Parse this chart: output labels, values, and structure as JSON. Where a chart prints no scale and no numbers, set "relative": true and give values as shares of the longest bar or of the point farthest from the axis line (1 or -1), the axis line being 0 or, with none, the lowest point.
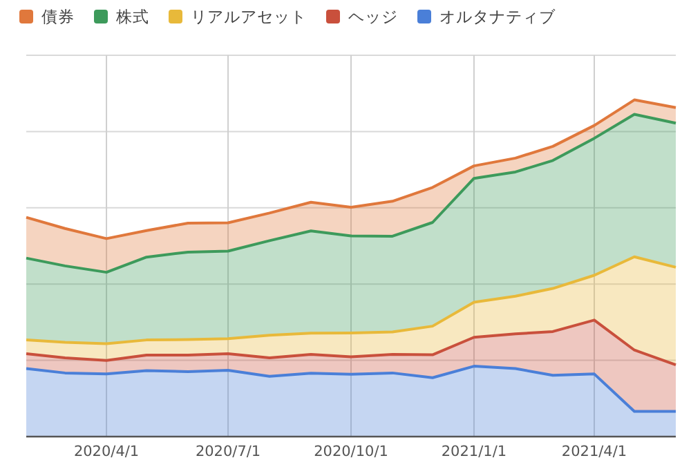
{
  "chart_data": {
    "type": "area",
    "stacked": true,
    "relative": true,
    "grid": true,
    "legend": "top left",
    "x": [
      "2020-02-01",
      "2020-03-01",
      "2020-04-01",
      "2020-05-01",
      "2020-06-01",
      "2020-07-01",
      "2020-08-01",
      "2020-09-01",
      "2020-10-01",
      "2020-11-01",
      "2020-12-01",
      "2021-01-01",
      "2021-02-01",
      "2021-03-01",
      "2021-04-01",
      "2021-05-01",
      "2021-06-01"
    ],
    "xlim": [
      "2020-02-01",
      "2021-06-01"
    ],
    "xticks": [
      {
        "value": "2020-04-01",
        "label": "2020/4/1"
      },
      {
        "value": "2020-07-01",
        "label": "2020/7/1"
      },
      {
        "value": "2020-10-01",
        "label": "2020/10/1"
      },
      {
        "value": "2021-01-01",
        "label": "2021/1/1"
      },
      {
        "value": "2021-04-01",
        "label": "2021/4/1"
      }
    ],
    "series": [
      {
        "name": "オルタナティブ",
        "color": "#4a7fd8",
        "values": [
          0.202,
          0.189,
          0.186,
          0.196,
          0.193,
          0.197,
          0.179,
          0.188,
          0.185,
          0.189,
          0.175,
          0.209,
          0.202,
          0.182,
          0.186,
          0.075,
          0.075
        ]
      },
      {
        "name": "ヘッジ",
        "color": "#c9503c",
        "values": [
          0.044,
          0.045,
          0.04,
          0.046,
          0.049,
          0.049,
          0.055,
          0.056,
          0.052,
          0.055,
          0.068,
          0.086,
          0.103,
          0.13,
          0.16,
          0.182,
          0.138
        ]
      },
      {
        "name": "リアルアセット",
        "color": "#e8b93a",
        "values": [
          0.041,
          0.046,
          0.05,
          0.045,
          0.046,
          0.045,
          0.067,
          0.063,
          0.071,
          0.067,
          0.085,
          0.104,
          0.112,
          0.128,
          0.133,
          0.277,
          0.29
        ]
      },
      {
        "name": "株式",
        "color": "#3d9a5b",
        "values": [
          0.243,
          0.227,
          0.212,
          0.246,
          0.26,
          0.26,
          0.281,
          0.304,
          0.288,
          0.284,
          0.308,
          0.368,
          0.369,
          0.38,
          0.407,
          0.423,
          0.428
        ]
      },
      {
        "name": "債券",
        "color": "#e0783c",
        "values": [
          0.121,
          0.111,
          0.1,
          0.079,
          0.086,
          0.084,
          0.082,
          0.085,
          0.085,
          0.104,
          0.104,
          0.037,
          0.041,
          0.042,
          0.038,
          0.043,
          0.046
        ]
      }
    ]
  }
}
